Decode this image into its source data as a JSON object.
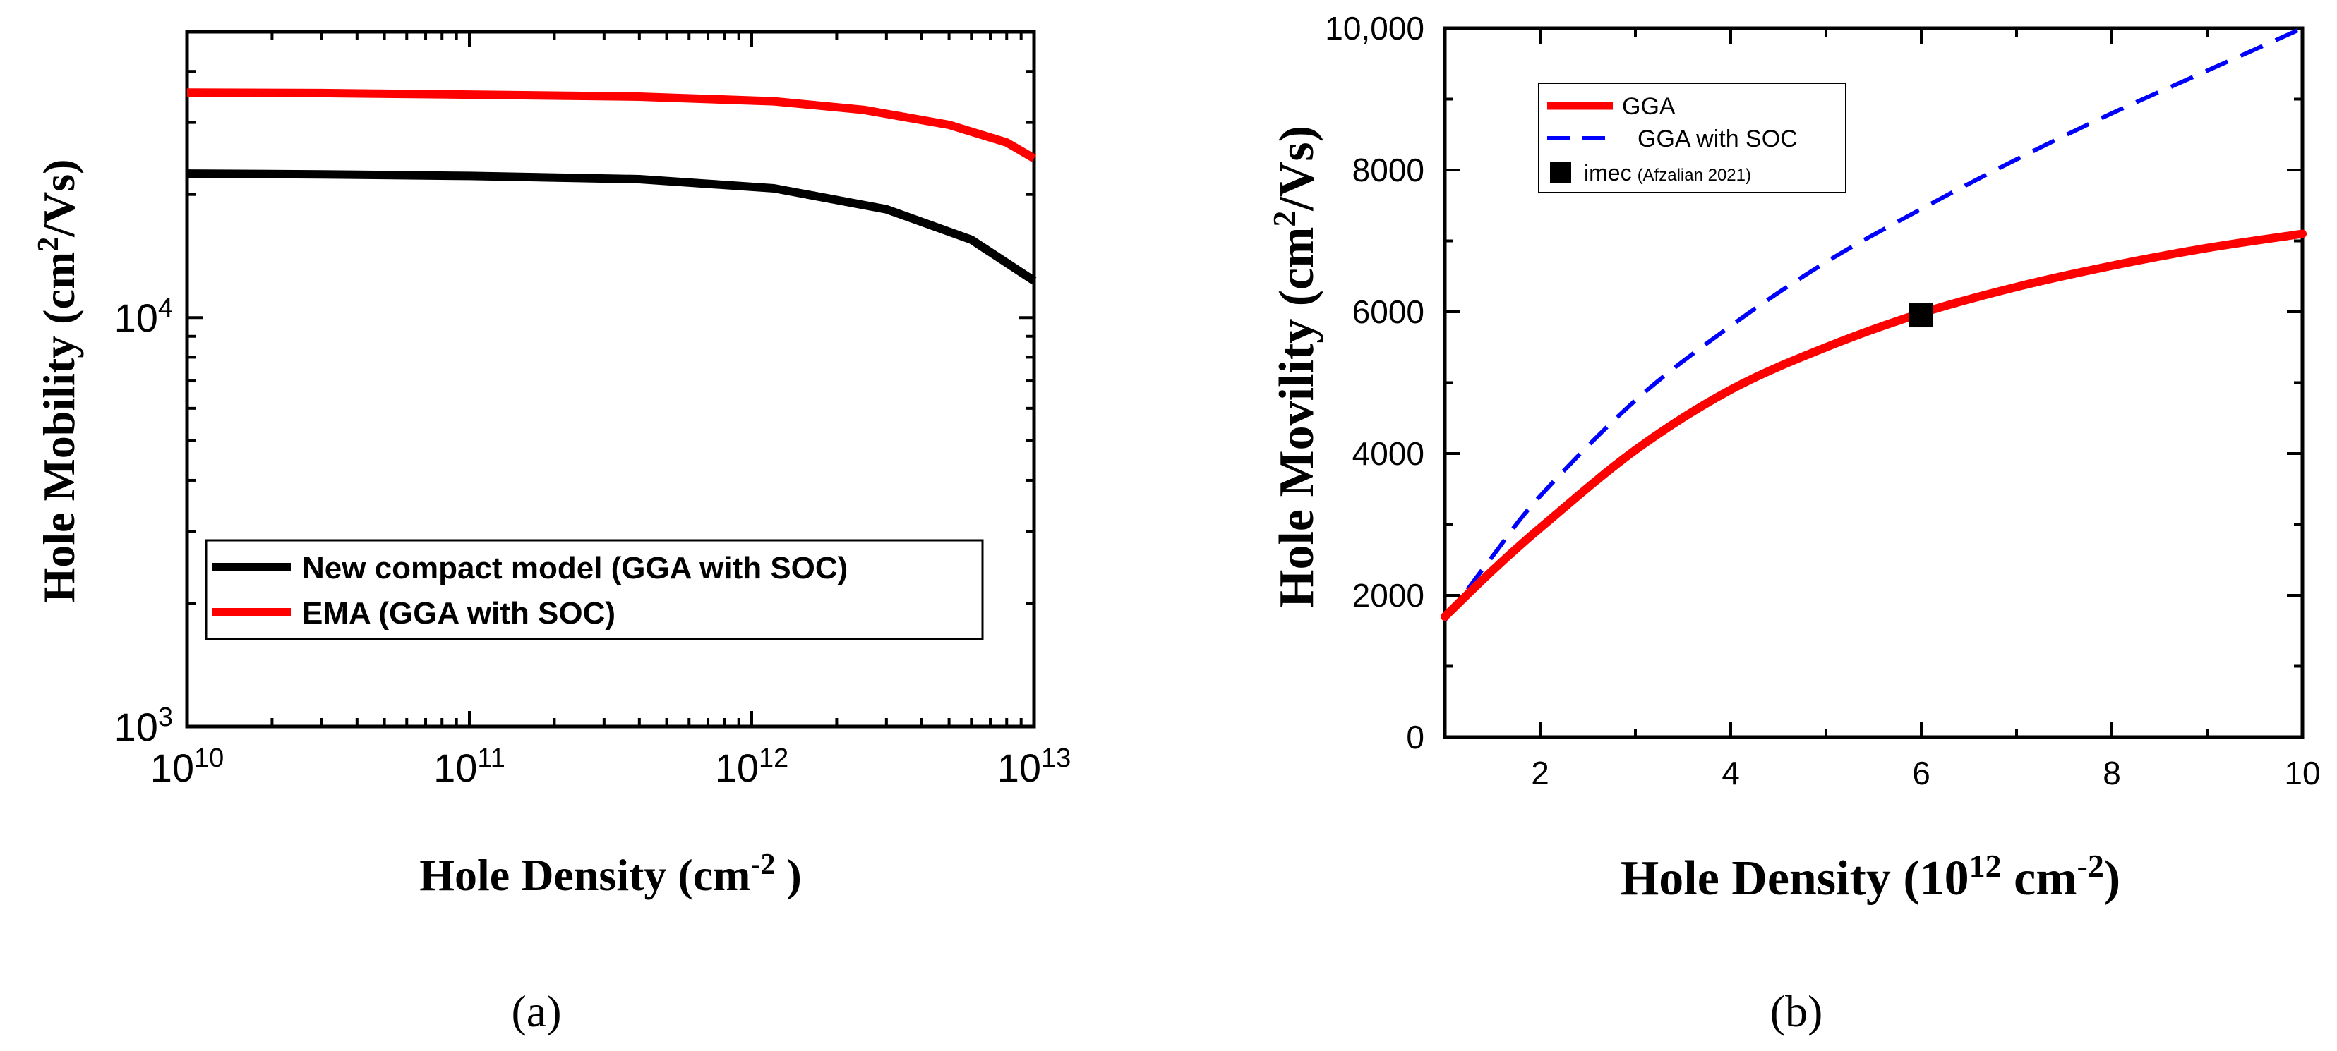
{
  "chart_data": [
    {
      "panel": "(a)",
      "type": "line",
      "xscale": "log",
      "yscale": "log",
      "xlim": [
        10000000000.0,
        10000000000000.0
      ],
      "ylim": [
        1000,
        50000
      ],
      "xlabel": "Hole Density (cm",
      "xlabel_sup": "-2",
      "xlabel_end": " )",
      "ylabel": "Hole Mobility (cm",
      "ylabel_sup": "2",
      "ylabel_end": "/Vs)",
      "x_ticks": [
        {
          "base": "10",
          "exp": "10"
        },
        {
          "base": "10",
          "exp": "11"
        },
        {
          "base": "10",
          "exp": "12"
        },
        {
          "base": "10",
          "exp": "13"
        }
      ],
      "y_ticks": [
        {
          "base": "10",
          "exp": "3"
        },
        {
          "base": "10",
          "exp": "4"
        }
      ],
      "legend_position": "lower-left",
      "series": [
        {
          "name": "New compact model (GGA with SOC)",
          "color": "#000000",
          "x": [
            10000000000.0,
            30000000000.0,
            100000000000.0,
            400000000000.0,
            1200000000000.0,
            3000000000000.0,
            6000000000000.0,
            10000000000000.0
          ],
          "y": [
            22500,
            22400,
            22200,
            21800,
            20700,
            18400,
            15500,
            12300
          ]
        },
        {
          "name": "EMA (GGA with SOC)",
          "color": "#ff0000",
          "x": [
            10000000000.0,
            30000000000.0,
            100000000000.0,
            400000000000.0,
            1200000000000.0,
            2500000000000.0,
            5000000000000.0,
            8000000000000.0,
            10000000000000.0
          ],
          "y": [
            35500,
            35400,
            35100,
            34700,
            33800,
            32200,
            29600,
            26800,
            24500
          ]
        }
      ]
    },
    {
      "panel": "(b)",
      "type": "line",
      "xlim": [
        1,
        10
      ],
      "ylim": [
        0,
        10000
      ],
      "xlabel": "Hole Density (10",
      "xlabel_sup": "12",
      "xlabel_mid": " cm",
      "xlabel_sup2": "-2",
      "xlabel_end": ")",
      "ylabel": "Hole Movility (cm",
      "ylabel_sup": "2",
      "ylabel_end": "/Vs)",
      "x_tick_labels": [
        "2",
        "4",
        "6",
        "8",
        "10"
      ],
      "x_ticks": [
        2,
        4,
        6,
        8,
        10
      ],
      "y_tick_labels": [
        "0",
        "2000",
        "4000",
        "6000",
        "8000",
        "10,000"
      ],
      "y_ticks": [
        0,
        2000,
        4000,
        6000,
        8000,
        10000
      ],
      "legend_position": "top-left",
      "series": [
        {
          "name": "GGA",
          "color": "#ff0000",
          "style": "solid",
          "x": [
            1,
            1.5,
            2,
            3,
            4,
            5,
            6,
            7,
            8,
            9,
            10
          ],
          "y": [
            1700,
            2350,
            2950,
            4050,
            4900,
            5500,
            5980,
            6350,
            6650,
            6900,
            7100
          ]
        },
        {
          "name": "GGA with SOC",
          "color": "#0000ff",
          "style": "dashed",
          "x": [
            1,
            1.5,
            2,
            3,
            4,
            5,
            6,
            7,
            8,
            9,
            10
          ],
          "y": [
            1650,
            2550,
            3400,
            4750,
            5800,
            6700,
            7450,
            8150,
            8800,
            9400,
            10000
          ]
        },
        {
          "name": "imec",
          "name_note": "(Afzalian 2021)",
          "color": "#000000",
          "style": "marker-square",
          "x": [
            6
          ],
          "y": [
            5950
          ]
        }
      ]
    }
  ]
}
